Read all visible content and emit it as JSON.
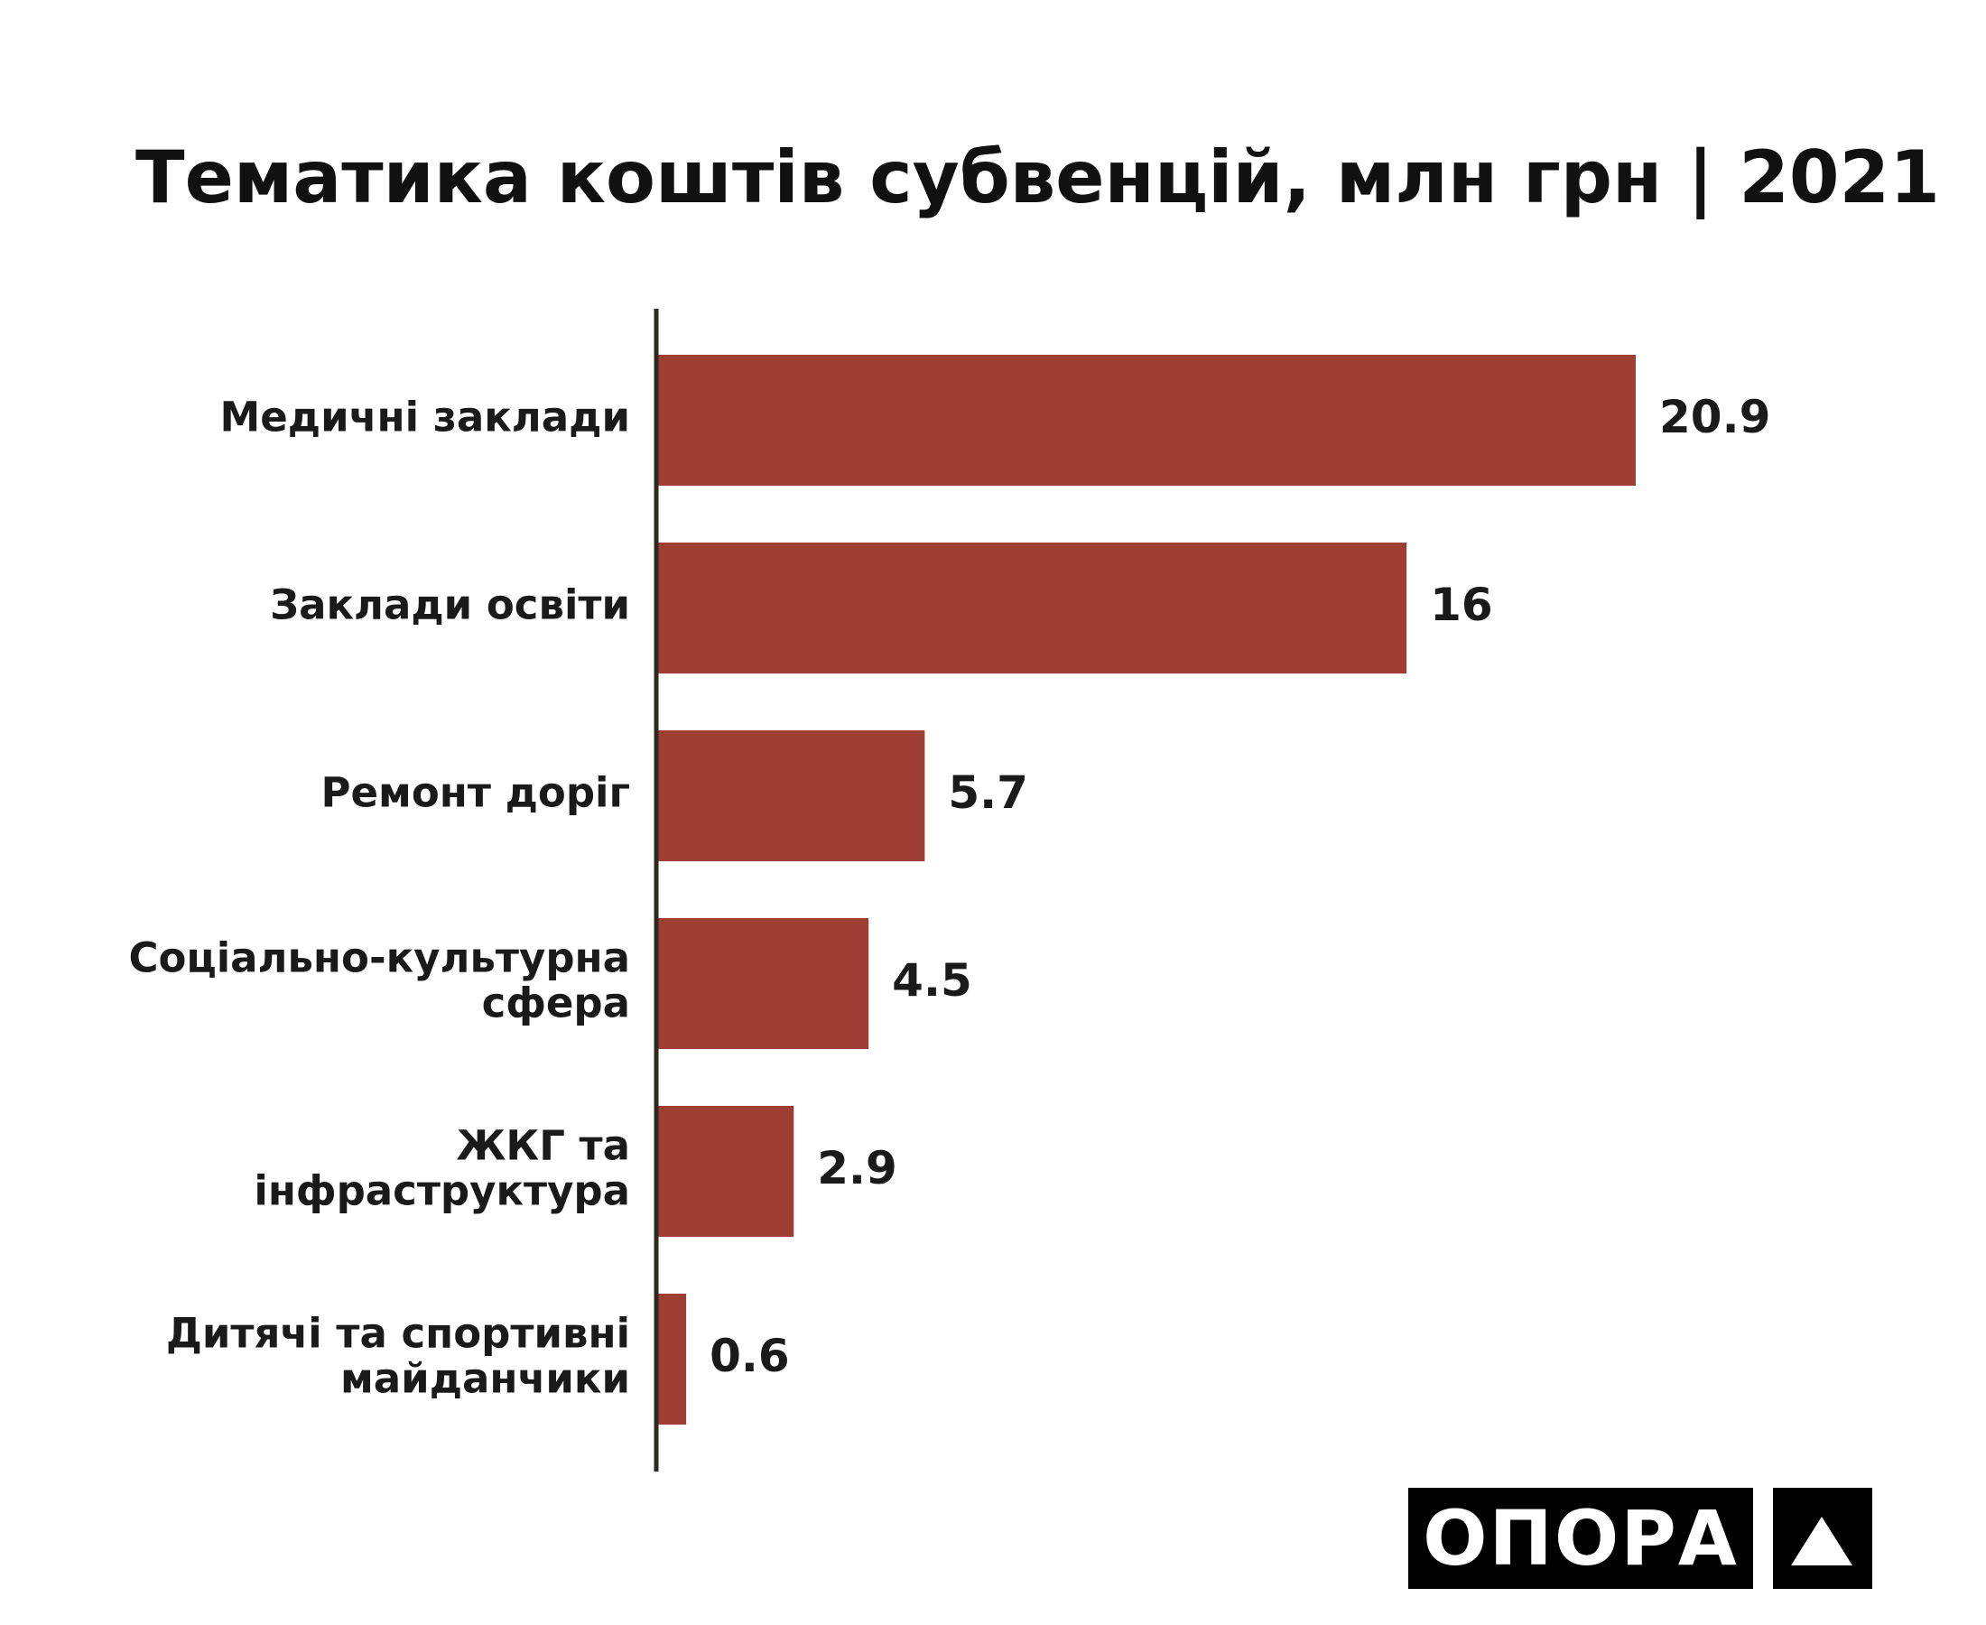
{
  "chart_data": {
    "type": "bar",
    "orientation": "horizontal",
    "title": "Тематика коштів субвенцій, млн грн | 2021",
    "categories": [
      [
        "Медичні заклади"
      ],
      [
        "Заклади освіти"
      ],
      [
        "Ремонт доріг"
      ],
      [
        "Соціально-культурна",
        "сфера"
      ],
      [
        "ЖКГ та",
        "інфраструктура"
      ],
      [
        "Дитячі та спортивні",
        "майданчики"
      ]
    ],
    "values": [
      20.9,
      16,
      5.7,
      4.5,
      2.9,
      0.6
    ],
    "value_labels": [
      "20.9",
      "16",
      "5.7",
      "4.5",
      "2.9",
      "0.6"
    ],
    "xlim": [
      0,
      20.9
    ],
    "grid": false,
    "legend": "none",
    "bar_color": "#9e3d34",
    "axis_color": "#2a2a22"
  },
  "logo": {
    "text": "ОПОРА",
    "mark": "triangle-icon"
  }
}
